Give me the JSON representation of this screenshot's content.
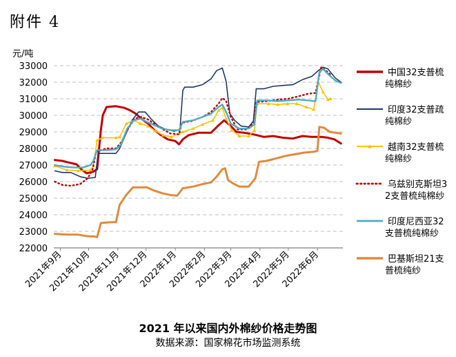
{
  "attachment_label": "附件 4",
  "caption": {
    "title": "2021 年以来国内外棉纱价格走势图",
    "source": "数据来源：国家棉花市场监测系统"
  },
  "chart_data": {
    "type": "line",
    "title": "",
    "ylabel": "元/吨",
    "xlabel": "",
    "ylim": [
      22000,
      33000
    ],
    "yticks": [
      22000,
      23000,
      24000,
      25000,
      26000,
      27000,
      28000,
      29000,
      30000,
      31000,
      32000,
      33000
    ],
    "xlim": [
      "2021-08-25",
      "2022-06-28"
    ],
    "xticks": [
      {
        "date": "2021-09-01",
        "label": "2021年9月"
      },
      {
        "date": "2021-10-01",
        "label": "2021年10月"
      },
      {
        "date": "2021-11-01",
        "label": "2021年11月"
      },
      {
        "date": "2021-12-01",
        "label": "2021年12月"
      },
      {
        "date": "2022-01-01",
        "label": "2022年1月"
      },
      {
        "date": "2022-02-01",
        "label": "2022年2月"
      },
      {
        "date": "2022-03-01",
        "label": "2022年3月"
      },
      {
        "date": "2022-04-01",
        "label": "2022年4月"
      },
      {
        "date": "2022-05-01",
        "label": "2022年5月"
      },
      {
        "date": "2022-06-01",
        "label": "2022年6月"
      }
    ],
    "grid": "horizontal-dashed",
    "legend_position": "right",
    "series": [
      {
        "name": "中国32支普梳纯棉纱",
        "color": "#c00000",
        "style": "solid",
        "width": 3,
        "marker": "none",
        "points": [
          [
            "2021-08-26",
            27300
          ],
          [
            "2021-09-03",
            27250
          ],
          [
            "2021-09-10",
            27150
          ],
          [
            "2021-09-18",
            27050
          ],
          [
            "2021-09-24",
            26700
          ],
          [
            "2021-09-29",
            26500
          ],
          [
            "2021-10-06",
            26600
          ],
          [
            "2021-10-10",
            26750
          ],
          [
            "2021-10-14",
            29100
          ],
          [
            "2021-10-16",
            30000
          ],
          [
            "2021-10-20",
            30500
          ],
          [
            "2021-10-30",
            30550
          ],
          [
            "2021-11-08",
            30450
          ],
          [
            "2021-11-14",
            30300
          ],
          [
            "2021-11-20",
            30100
          ],
          [
            "2021-11-26",
            29800
          ],
          [
            "2021-12-03",
            29500
          ],
          [
            "2021-12-10",
            29100
          ],
          [
            "2021-12-17",
            28800
          ],
          [
            "2021-12-24",
            28550
          ],
          [
            "2022-01-01",
            28450
          ],
          [
            "2022-01-05",
            28250
          ],
          [
            "2022-01-09",
            28550
          ],
          [
            "2022-01-15",
            28800
          ],
          [
            "2022-01-26",
            28950
          ],
          [
            "2022-02-03",
            28950
          ],
          [
            "2022-02-08",
            28950
          ],
          [
            "2022-02-16",
            29400
          ],
          [
            "2022-02-22",
            29700
          ],
          [
            "2022-03-01",
            29350
          ],
          [
            "2022-03-07",
            29000
          ],
          [
            "2022-03-15",
            28950
          ],
          [
            "2022-03-25",
            28850
          ],
          [
            "2022-04-05",
            28700
          ],
          [
            "2022-04-15",
            28750
          ],
          [
            "2022-04-25",
            28650
          ],
          [
            "2022-05-06",
            28600
          ],
          [
            "2022-05-16",
            28750
          ],
          [
            "2022-05-26",
            28700
          ],
          [
            "2022-06-05",
            28700
          ],
          [
            "2022-06-12",
            28650
          ],
          [
            "2022-06-19",
            28550
          ],
          [
            "2022-06-26",
            28300
          ]
        ]
      },
      {
        "name": "印度32支普疏纯棉纱",
        "color": "#1f3864",
        "style": "solid",
        "width": 1.6,
        "marker": "none",
        "points": [
          [
            "2021-08-26",
            26650
          ],
          [
            "2021-09-03",
            26550
          ],
          [
            "2021-09-12",
            26550
          ],
          [
            "2021-09-22",
            26300
          ],
          [
            "2021-09-30",
            26200
          ],
          [
            "2021-10-08",
            26250
          ],
          [
            "2021-10-11",
            27700
          ],
          [
            "2021-10-20",
            27700
          ],
          [
            "2021-10-30",
            27700
          ],
          [
            "2021-11-03",
            28000
          ],
          [
            "2021-11-09",
            28800
          ],
          [
            "2021-11-16",
            29700
          ],
          [
            "2021-11-23",
            30200
          ],
          [
            "2021-11-30",
            30200
          ],
          [
            "2021-12-06",
            29800
          ],
          [
            "2021-12-14",
            29350
          ],
          [
            "2021-12-22",
            29150
          ],
          [
            "2021-12-31",
            29050
          ],
          [
            "2022-01-06",
            29150
          ],
          [
            "2022-01-09",
            31500
          ],
          [
            "2022-01-11",
            31700
          ],
          [
            "2022-01-20",
            31700
          ],
          [
            "2022-01-30",
            31850
          ],
          [
            "2022-02-08",
            32200
          ],
          [
            "2022-02-14",
            32700
          ],
          [
            "2022-02-20",
            32850
          ],
          [
            "2022-02-24",
            32050
          ],
          [
            "2022-02-28",
            30100
          ],
          [
            "2022-03-05",
            29700
          ],
          [
            "2022-03-12",
            29350
          ],
          [
            "2022-03-20",
            29300
          ],
          [
            "2022-03-25",
            29650
          ],
          [
            "2022-03-28",
            31600
          ],
          [
            "2022-04-05",
            31600
          ],
          [
            "2022-04-15",
            31750
          ],
          [
            "2022-04-25",
            31800
          ],
          [
            "2022-05-06",
            31850
          ],
          [
            "2022-05-16",
            32150
          ],
          [
            "2022-05-26",
            32350
          ],
          [
            "2022-06-02",
            32700
          ],
          [
            "2022-06-07",
            32900
          ],
          [
            "2022-06-12",
            32800
          ],
          [
            "2022-06-20",
            32250
          ],
          [
            "2022-06-26",
            32000
          ]
        ]
      },
      {
        "name": "越南32支普梳纯棉纱",
        "color": "#ffc000",
        "style": "solid",
        "width": 1.6,
        "marker": "triangle",
        "points": [
          [
            "2021-08-26",
            26950
          ],
          [
            "2021-09-08",
            26700
          ],
          [
            "2021-09-20",
            26650
          ],
          [
            "2021-10-03",
            26700
          ],
          [
            "2021-10-06",
            26950
          ],
          [
            "2021-10-10",
            28500
          ],
          [
            "2021-10-16",
            28650
          ],
          [
            "2021-10-30",
            28650
          ],
          [
            "2021-11-03",
            28700
          ],
          [
            "2021-11-10",
            29500
          ],
          [
            "2021-11-18",
            29700
          ],
          [
            "2021-11-25",
            29500
          ],
          [
            "2021-12-03",
            29350
          ],
          [
            "2021-12-11",
            29050
          ],
          [
            "2021-12-19",
            28800
          ],
          [
            "2021-12-28",
            28700
          ],
          [
            "2022-01-05",
            28900
          ],
          [
            "2022-01-09",
            29000
          ],
          [
            "2022-01-20",
            29200
          ],
          [
            "2022-01-30",
            29450
          ],
          [
            "2022-02-10",
            29700
          ],
          [
            "2022-02-16",
            30300
          ],
          [
            "2022-02-20",
            30450
          ],
          [
            "2022-02-24",
            29800
          ],
          [
            "2022-03-02",
            29100
          ],
          [
            "2022-03-10",
            28750
          ],
          [
            "2022-03-20",
            28750
          ],
          [
            "2022-03-26",
            29100
          ],
          [
            "2022-03-29",
            30700
          ],
          [
            "2022-04-10",
            30700
          ],
          [
            "2022-04-20",
            30650
          ],
          [
            "2022-04-30",
            30700
          ],
          [
            "2022-05-10",
            30700
          ],
          [
            "2022-05-20",
            30500
          ],
          [
            "2022-05-28",
            30350
          ],
          [
            "2022-06-02",
            32000
          ],
          [
            "2022-06-07",
            31400
          ],
          [
            "2022-06-12",
            30950
          ],
          [
            "2022-06-15",
            31000
          ]
        ]
      },
      {
        "name": "乌兹别克斯坦32支普梳纯棉纱",
        "color": "#c00000",
        "style": "dotted",
        "width": 2.4,
        "marker": "none",
        "points": [
          [
            "2021-08-26",
            26000
          ],
          [
            "2021-09-03",
            25800
          ],
          [
            "2021-09-12",
            25750
          ],
          [
            "2021-09-22",
            25850
          ],
          [
            "2021-09-30",
            26200
          ],
          [
            "2021-10-05",
            26700
          ],
          [
            "2021-10-09",
            27800
          ],
          [
            "2021-10-20",
            28000
          ],
          [
            "2021-10-30",
            28000
          ],
          [
            "2021-11-05",
            28400
          ],
          [
            "2021-11-12",
            29200
          ],
          [
            "2021-11-19",
            29800
          ],
          [
            "2021-11-26",
            29900
          ],
          [
            "2021-12-03",
            29750
          ],
          [
            "2021-12-11",
            29450
          ],
          [
            "2021-12-19",
            29150
          ],
          [
            "2021-12-27",
            28900
          ],
          [
            "2022-01-05",
            28850
          ],
          [
            "2022-01-08",
            29550
          ],
          [
            "2022-01-18",
            29650
          ],
          [
            "2022-01-30",
            29900
          ],
          [
            "2022-02-08",
            30200
          ],
          [
            "2022-02-16",
            30700
          ],
          [
            "2022-02-20",
            31050
          ],
          [
            "2022-02-24",
            30850
          ],
          [
            "2022-03-01",
            29900
          ],
          [
            "2022-03-08",
            29150
          ],
          [
            "2022-03-18",
            29150
          ],
          [
            "2022-03-25",
            29500
          ],
          [
            "2022-03-28",
            30800
          ],
          [
            "2022-04-08",
            30850
          ],
          [
            "2022-04-20",
            30950
          ],
          [
            "2022-05-01",
            31000
          ],
          [
            "2022-05-12",
            31150
          ],
          [
            "2022-05-22",
            31300
          ],
          [
            "2022-05-30",
            31350
          ],
          [
            "2022-06-05",
            32900
          ],
          [
            "2022-06-10",
            32700
          ],
          [
            "2022-06-16",
            32400
          ]
        ]
      },
      {
        "name": "印度尼西亚32支普梳纯棉纱",
        "color": "#4bacc6",
        "style": "solid",
        "width": 2.4,
        "marker": "none",
        "points": [
          [
            "2021-08-26",
            27000
          ],
          [
            "2021-09-05",
            26900
          ],
          [
            "2021-09-15",
            26850
          ],
          [
            "2021-09-25",
            26850
          ],
          [
            "2021-10-03",
            27000
          ],
          [
            "2021-10-06",
            27250
          ],
          [
            "2021-10-10",
            27900
          ],
          [
            "2021-10-20",
            27900
          ],
          [
            "2021-10-30",
            27950
          ],
          [
            "2021-11-04",
            28200
          ],
          [
            "2021-11-11",
            29200
          ],
          [
            "2021-11-18",
            29700
          ],
          [
            "2021-11-25",
            29800
          ],
          [
            "2021-12-02",
            29600
          ],
          [
            "2021-12-10",
            29400
          ],
          [
            "2021-12-18",
            29200
          ],
          [
            "2021-12-27",
            29100
          ],
          [
            "2022-01-05",
            29100
          ],
          [
            "2022-01-09",
            29600
          ],
          [
            "2022-01-20",
            29700
          ],
          [
            "2022-01-30",
            29900
          ],
          [
            "2022-02-08",
            30100
          ],
          [
            "2022-02-16",
            30500
          ],
          [
            "2022-02-20",
            30650
          ],
          [
            "2022-02-24",
            30200
          ],
          [
            "2022-03-01",
            29500
          ],
          [
            "2022-03-10",
            29200
          ],
          [
            "2022-03-20",
            29200
          ],
          [
            "2022-03-26",
            29450
          ],
          [
            "2022-03-29",
            30900
          ],
          [
            "2022-04-10",
            30900
          ],
          [
            "2022-04-20",
            30850
          ],
          [
            "2022-05-01",
            30900
          ],
          [
            "2022-05-12",
            30950
          ],
          [
            "2022-05-22",
            30900
          ],
          [
            "2022-05-30",
            30850
          ],
          [
            "2022-06-03",
            32600
          ],
          [
            "2022-06-07",
            32800
          ],
          [
            "2022-06-12",
            32500
          ],
          [
            "2022-06-20",
            32100
          ],
          [
            "2022-06-26",
            31950
          ]
        ]
      },
      {
        "name": "巴基斯坦21支普梳纯纱",
        "color": "#e08a3c",
        "style": "solid",
        "width": 3,
        "marker": "none",
        "points": [
          [
            "2021-08-26",
            22850
          ],
          [
            "2021-09-08",
            22800
          ],
          [
            "2021-09-20",
            22800
          ],
          [
            "2021-09-30",
            22700
          ],
          [
            "2021-10-06",
            22700
          ],
          [
            "2021-10-10",
            22650
          ],
          [
            "2021-10-14",
            23500
          ],
          [
            "2021-10-24",
            23550
          ],
          [
            "2021-10-30",
            23550
          ],
          [
            "2021-11-03",
            24600
          ],
          [
            "2021-11-10",
            25200
          ],
          [
            "2021-11-17",
            25650
          ],
          [
            "2021-11-24",
            25650
          ],
          [
            "2021-12-02",
            25650
          ],
          [
            "2021-12-10",
            25450
          ],
          [
            "2021-12-18",
            25300
          ],
          [
            "2021-12-26",
            25200
          ],
          [
            "2022-01-03",
            25150
          ],
          [
            "2022-01-09",
            25600
          ],
          [
            "2022-01-20",
            25700
          ],
          [
            "2022-01-30",
            25850
          ],
          [
            "2022-02-08",
            25950
          ],
          [
            "2022-02-14",
            26300
          ],
          [
            "2022-02-20",
            26750
          ],
          [
            "2022-02-23",
            26800
          ],
          [
            "2022-02-26",
            26100
          ],
          [
            "2022-03-03",
            25900
          ],
          [
            "2022-03-10",
            25700
          ],
          [
            "2022-03-20",
            25700
          ],
          [
            "2022-03-27",
            26200
          ],
          [
            "2022-03-31",
            27200
          ],
          [
            "2022-04-08",
            27250
          ],
          [
            "2022-04-18",
            27400
          ],
          [
            "2022-04-28",
            27550
          ],
          [
            "2022-05-08",
            27650
          ],
          [
            "2022-05-18",
            27750
          ],
          [
            "2022-05-28",
            27800
          ],
          [
            "2022-06-01",
            27850
          ],
          [
            "2022-06-03",
            29300
          ],
          [
            "2022-06-08",
            29250
          ],
          [
            "2022-06-14",
            29000
          ],
          [
            "2022-06-20",
            28950
          ],
          [
            "2022-06-26",
            28900
          ]
        ]
      }
    ]
  }
}
